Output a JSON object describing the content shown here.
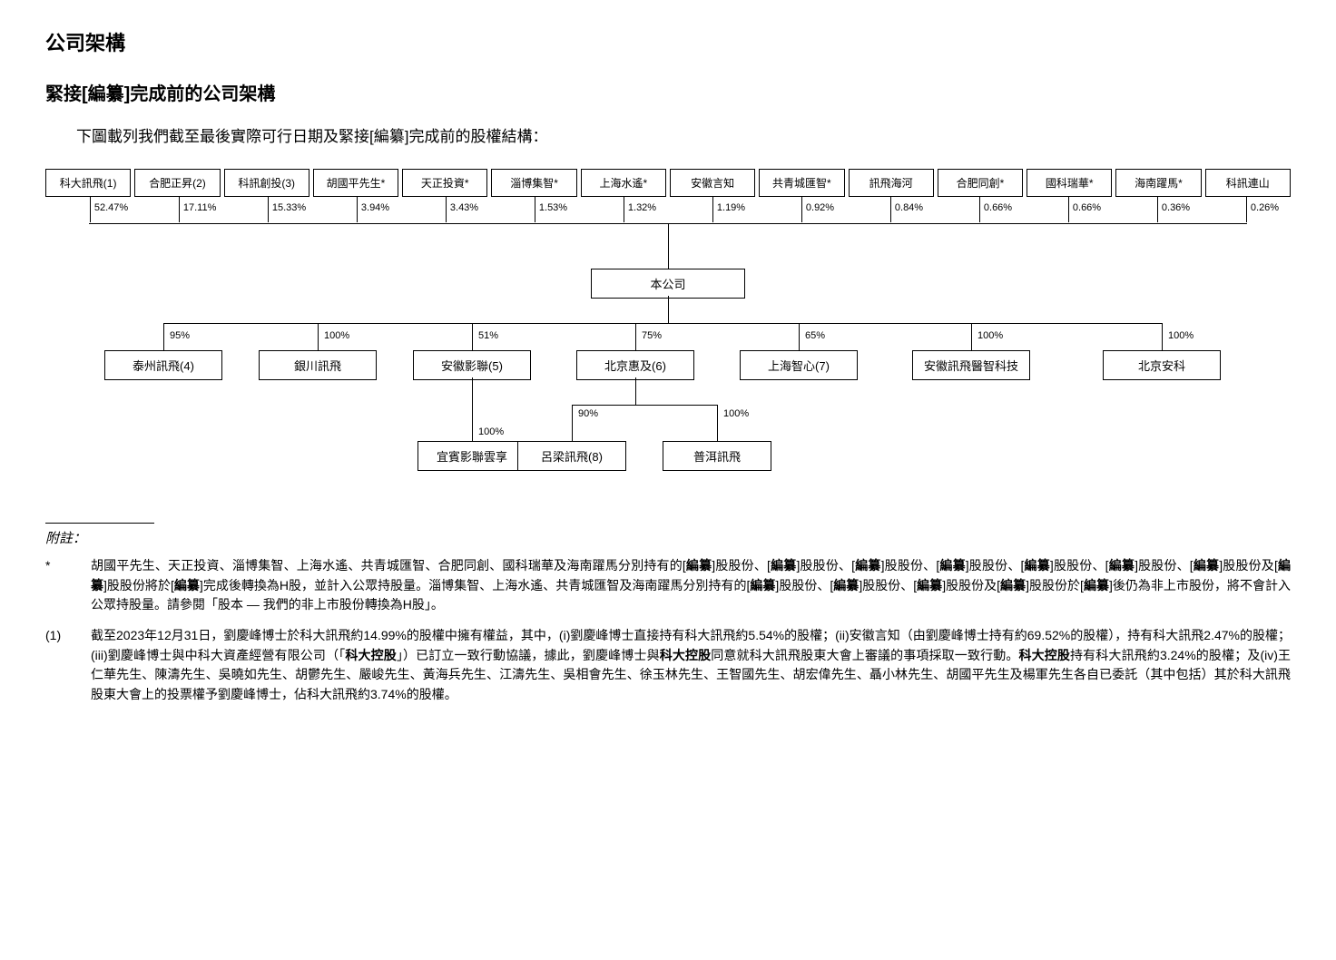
{
  "title": "公司架構",
  "subtitle": "緊接[編纂]完成前的公司架構",
  "caption": "下圖載列我們截至最後實際可行日期及緊接[編纂]完成前的股權結構：",
  "shareholders": [
    {
      "name": "科大訊飛(1)",
      "percent": "52.47%"
    },
    {
      "name": "合肥正昇(2)",
      "percent": "17.11%"
    },
    {
      "name": "科訊創投(3)",
      "percent": "15.33%"
    },
    {
      "name": "胡國平先生*",
      "percent": "3.94%"
    },
    {
      "name": "天正投資*",
      "percent": "3.43%"
    },
    {
      "name": "淄博集智*",
      "percent": "1.53%"
    },
    {
      "name": "上海水遙*",
      "percent": "1.32%"
    },
    {
      "name": "安徽言知",
      "percent": "1.19%"
    },
    {
      "name": "共青城匯智*",
      "percent": "0.92%"
    },
    {
      "name": "訊飛海河",
      "percent": "0.84%"
    },
    {
      "name": "合肥同創*",
      "percent": "0.66%"
    },
    {
      "name": "國科瑞華*",
      "percent": "0.66%"
    },
    {
      "name": "海南躍馬*",
      "percent": "0.36%"
    },
    {
      "name": "科訊連山",
      "percent": "0.26%"
    }
  ],
  "company": "本公司",
  "subsidiaries": [
    {
      "name": "泰州訊飛(4)",
      "percent": "95%"
    },
    {
      "name": "銀川訊飛",
      "percent": "100%"
    },
    {
      "name": "安徽影聯(5)",
      "percent": "51%"
    },
    {
      "name": "北京惠及(6)",
      "percent": "75%"
    },
    {
      "name": "上海智心(7)",
      "percent": "65%"
    },
    {
      "name": "安徽訊飛醫智科技",
      "percent": "100%"
    },
    {
      "name": "北京安科",
      "percent": "100%"
    }
  ],
  "subsubs": [
    {
      "name": "宜賓影聯雲享",
      "percent": "100%"
    },
    {
      "name": "呂梁訊飛(8)",
      "percent": "90%"
    },
    {
      "name": "普洱訊飛",
      "percent": "100%"
    }
  ],
  "notes_header": "附註：",
  "notes": [
    {
      "marker": "*",
      "text": "胡國平先生、天正投資、淄博集智、上海水遙、共青城匯智、合肥同創、國科瑞華及海南躍馬分別持有的[編纂]股股份、[編纂]股股份、[編纂]股股份、[編纂]股股份、[編纂]股股份、[編纂]股股份、[編纂]股股份及[編纂]股股份將於[編纂]完成後轉換為H股，並計入公眾持股量。淄博集智、上海水遙、共青城匯智及海南躍馬分別持有的[編纂]股股份、[編纂]股股份、[編纂]股股份及[編纂]股股份於[編纂]後仍為非上市股份，將不會計入公眾持股量。請參閱「股本 — 我們的非上市股份轉換為H股」。"
    },
    {
      "marker": "(1)",
      "text": "截至2023年12月31日，劉慶峰博士於科大訊飛約14.99%的股權中擁有權益，其中，(i)劉慶峰博士直接持有科大訊飛約5.54%的股權；(ii)安徽言知（由劉慶峰博士持有約69.52%的股權），持有科大訊飛2.47%的股權；(iii)劉慶峰博士與中科大資產經營有限公司（「科大控股」）已訂立一致行動協議，據此，劉慶峰博士與科大控股同意就科大訊飛股東大會上審議的事項採取一致行動。科大控股持有科大訊飛約3.24%的股權；及(iv)王仁華先生、陳濤先生、吳曉如先生、胡鬱先生、嚴峻先生、黃海兵先生、江濤先生、吳相會先生、徐玉林先生、王智國先生、胡宏偉先生、聶小林先生、胡國平先生及楊軍先生各自已委託（其中包括）其於科大訊飛股東大會上的投票權予劉慶峰博士，佔科大訊飛約3.74%的股權。"
    }
  ]
}
